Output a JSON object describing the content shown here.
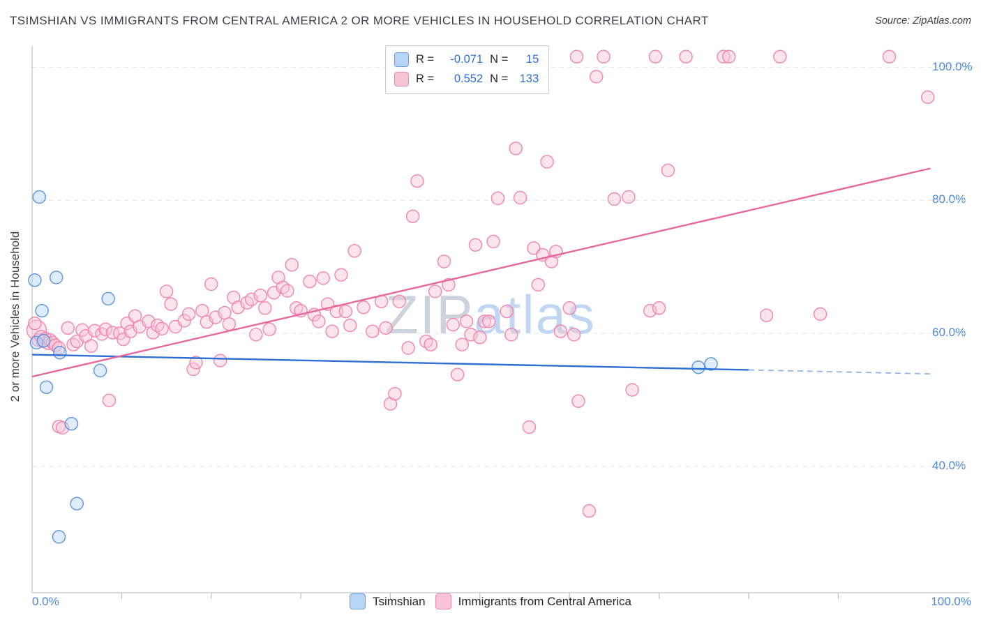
{
  "title": "TSIMSHIAN VS IMMIGRANTS FROM CENTRAL AMERICA 2 OR MORE VEHICLES IN HOUSEHOLD CORRELATION CHART",
  "source": "Source: ZipAtlas.com",
  "y_axis_label": "2 or more Vehicles in Household",
  "watermark": {
    "zip": "ZIP",
    "atlas": "atlas"
  },
  "legend_box": {
    "rows": [
      {
        "series": "Tsimshian",
        "r_label": "R =",
        "r_value": "-0.071",
        "n_label": "N =",
        "n_value": "15"
      },
      {
        "series": "Immigrants from Central America",
        "r_label": "R =",
        "r_value": "0.552",
        "n_label": "N =",
        "n_value": "133"
      }
    ]
  },
  "bottom_legend": [
    {
      "label": "Tsimshian",
      "fill": "#b5d4f6",
      "stroke": "#6d9ee0"
    },
    {
      "label": "Immigrants from Central America",
      "fill": "#f9c4d7",
      "stroke": "#ef86ae"
    }
  ],
  "axes": {
    "x_tick_labels": [
      {
        "value": 0,
        "label": "0.0%"
      },
      {
        "value": 100,
        "label": "100.0%"
      }
    ],
    "y_ticks": [
      {
        "value": 100,
        "label": "100.0%"
      },
      {
        "value": 80,
        "label": "80.0%"
      },
      {
        "value": 60,
        "label": "60.0%"
      },
      {
        "value": 40,
        "label": "40.0%"
      }
    ],
    "x_minor_ticks": [
      10,
      20,
      30,
      40,
      50,
      60,
      70,
      80,
      90
    ]
  },
  "colors": {
    "tsimshian_fill": "#b5d4f6",
    "tsimshian_stroke": "#5d93dd",
    "immigrants_fill": "#f9c4d7",
    "immigrants_stroke": "#ef86ae",
    "tsimshian_trend": "#2d6fd2",
    "immigrants_trend": "#e8679e",
    "axis_label_blue": "#4a86d8",
    "gridline": "#dfe3e9"
  },
  "chart_data": {
    "type": "scatter",
    "title": "TSIMSHIAN VS IMMIGRANTS FROM CENTRAL AMERICA 2 OR MORE VEHICLES IN HOUSEHOLD CORRELATION CHART",
    "xlabel": "",
    "ylabel": "2 or more Vehicles in Household",
    "x_unit": "percent",
    "y_unit": "percent",
    "xlim": [
      0,
      104.7
    ],
    "ylim": [
      21,
      103.2
    ],
    "grid": "horizontal-dashed",
    "legend_position": "bottom-center",
    "series": [
      {
        "name": "Tsimshian",
        "r": -0.071,
        "n": 15,
        "fill": "#b5d4f6",
        "stroke": "#5d93dd",
        "points": [
          [
            0.3,
            68.0
          ],
          [
            0.8,
            80.5
          ],
          [
            0.5,
            58.6
          ],
          [
            1.1,
            63.4
          ],
          [
            1.3,
            58.9
          ],
          [
            1.6,
            51.9
          ],
          [
            2.7,
            68.4
          ],
          [
            3.1,
            57.1
          ],
          [
            3.0,
            29.4
          ],
          [
            4.4,
            46.4
          ],
          [
            5.0,
            34.4
          ],
          [
            7.6,
            54.4
          ],
          [
            8.5,
            65.2
          ],
          [
            74.4,
            54.9
          ],
          [
            75.8,
            55.4
          ]
        ]
      },
      {
        "name": "Immigrants from Central America",
        "r": 0.552,
        "n": 133,
        "fill": "#f9c4d7",
        "stroke": "#ef86ae",
        "points": [
          [
            0.5,
            60.5,
            14
          ],
          [
            0.3,
            61.5
          ],
          [
            0.7,
            59.0
          ],
          [
            1.0,
            59.5
          ],
          [
            1.2,
            58.8
          ],
          [
            1.5,
            59.2
          ],
          [
            1.8,
            58.5
          ],
          [
            2.0,
            59.0
          ],
          [
            2.3,
            58.6
          ],
          [
            2.6,
            58.2
          ],
          [
            3.0,
            57.8
          ],
          [
            3.0,
            46.0
          ],
          [
            3.4,
            45.8
          ],
          [
            4.0,
            60.8
          ],
          [
            4.6,
            58.3
          ],
          [
            5.0,
            58.8
          ],
          [
            5.6,
            60.5
          ],
          [
            6.0,
            59.6
          ],
          [
            6.6,
            58.1
          ],
          [
            7.0,
            60.4
          ],
          [
            7.8,
            59.9
          ],
          [
            8.2,
            60.6
          ],
          [
            8.6,
            49.9
          ],
          [
            9.0,
            60.1
          ],
          [
            9.8,
            60.0
          ],
          [
            10.2,
            59.1
          ],
          [
            10.6,
            61.5
          ],
          [
            11.0,
            60.3
          ],
          [
            11.5,
            62.6
          ],
          [
            12.0,
            61.0
          ],
          [
            13.0,
            61.8
          ],
          [
            13.5,
            60.1
          ],
          [
            14.0,
            61.2
          ],
          [
            14.5,
            60.7
          ],
          [
            15.0,
            66.3
          ],
          [
            15.5,
            64.4
          ],
          [
            16.0,
            61.0
          ],
          [
            17.0,
            61.9
          ],
          [
            17.5,
            62.9
          ],
          [
            18.0,
            54.6
          ],
          [
            18.3,
            55.6
          ],
          [
            19.0,
            63.4
          ],
          [
            19.5,
            61.7
          ],
          [
            20.0,
            67.4
          ],
          [
            20.5,
            62.4
          ],
          [
            21.0,
            55.9
          ],
          [
            21.5,
            63.1
          ],
          [
            22.0,
            61.4
          ],
          [
            22.5,
            65.4
          ],
          [
            23.0,
            63.9
          ],
          [
            24.0,
            64.6
          ],
          [
            24.5,
            65.1
          ],
          [
            25.0,
            59.8
          ],
          [
            25.5,
            65.7
          ],
          [
            26.0,
            63.8
          ],
          [
            26.5,
            60.6
          ],
          [
            27.0,
            66.1
          ],
          [
            27.5,
            68.4
          ],
          [
            28.0,
            66.9
          ],
          [
            28.5,
            66.4
          ],
          [
            29.0,
            70.3
          ],
          [
            29.5,
            63.8
          ],
          [
            30.0,
            63.4
          ],
          [
            31.0,
            67.8
          ],
          [
            31.5,
            62.8
          ],
          [
            32.0,
            61.8
          ],
          [
            32.5,
            68.3
          ],
          [
            33.0,
            64.4
          ],
          [
            33.5,
            60.3
          ],
          [
            34.0,
            63.3
          ],
          [
            34.5,
            68.8
          ],
          [
            35.0,
            63.3
          ],
          [
            35.5,
            61.2
          ],
          [
            36.0,
            72.4
          ],
          [
            37.0,
            63.9
          ],
          [
            38.0,
            60.3
          ],
          [
            39.0,
            64.8
          ],
          [
            39.5,
            60.8
          ],
          [
            40.0,
            49.4
          ],
          [
            40.5,
            50.9
          ],
          [
            41.0,
            64.8
          ],
          [
            42.0,
            57.8
          ],
          [
            42.5,
            77.6
          ],
          [
            43.0,
            82.9
          ],
          [
            44.0,
            58.8
          ],
          [
            44.5,
            58.3
          ],
          [
            45.0,
            66.3
          ],
          [
            46.0,
            70.8
          ],
          [
            46.5,
            67.3
          ],
          [
            47.0,
            61.3
          ],
          [
            47.5,
            53.8
          ],
          [
            48.0,
            58.3
          ],
          [
            48.5,
            61.8
          ],
          [
            49.0,
            59.8
          ],
          [
            49.5,
            73.3
          ],
          [
            50.0,
            59.4
          ],
          [
            50.5,
            61.8
          ],
          [
            51.0,
            61.8
          ],
          [
            51.5,
            73.8
          ],
          [
            52.0,
            80.3
          ],
          [
            53.0,
            63.3
          ],
          [
            53.5,
            59.8
          ],
          [
            54.0,
            87.8
          ],
          [
            54.5,
            80.4
          ],
          [
            60.8,
            101.6
          ],
          [
            55.5,
            45.9
          ],
          [
            56.0,
            72.8
          ],
          [
            56.5,
            67.3
          ],
          [
            57.0,
            71.8
          ],
          [
            57.5,
            85.8
          ],
          [
            58.0,
            70.8
          ],
          [
            58.5,
            72.3
          ],
          [
            59.0,
            60.3
          ],
          [
            60.0,
            63.8
          ],
          [
            60.5,
            59.8
          ],
          [
            61.0,
            49.8
          ],
          [
            62.2,
            33.3
          ],
          [
            63.0,
            98.6
          ],
          [
            63.8,
            101.6
          ],
          [
            65.0,
            80.2
          ],
          [
            66.6,
            80.5
          ],
          [
            67.0,
            51.5
          ],
          [
            69.0,
            63.4
          ],
          [
            70.0,
            63.8
          ],
          [
            69.6,
            101.6
          ],
          [
            71.0,
            84.5
          ],
          [
            73.0,
            101.6
          ],
          [
            77.2,
            101.6
          ],
          [
            77.8,
            101.6
          ],
          [
            83.5,
            101.6
          ],
          [
            95.7,
            101.6
          ],
          [
            100.0,
            95.5
          ],
          [
            82.0,
            62.7
          ],
          [
            88.0,
            62.9
          ]
        ]
      }
    ],
    "trend_lines": [
      {
        "series": "Tsimshian",
        "color": "#2d6fd2",
        "from": [
          0,
          56.8
        ],
        "to": [
          80,
          54.5
        ],
        "extension_dashed": {
          "from": [
            80,
            54.5
          ],
          "to": [
            100.5,
            53.9
          ],
          "color": "#8fb3e8"
        }
      },
      {
        "series": "Immigrants from Central America",
        "color": "#e8679e",
        "from": [
          0,
          53.5
        ],
        "to": [
          100.3,
          84.8
        ]
      }
    ]
  }
}
